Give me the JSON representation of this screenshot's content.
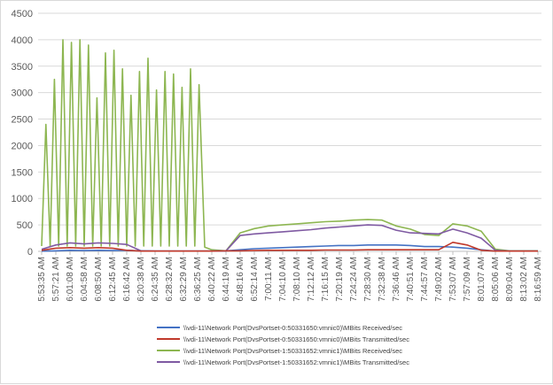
{
  "chart_data": {
    "type": "line",
    "title": "",
    "xlabel": "",
    "ylabel": "",
    "ylim": [
      0,
      4500
    ],
    "y_ticks": [
      0,
      500,
      1000,
      1500,
      2000,
      2500,
      3000,
      3500,
      4000,
      4500
    ],
    "grid": "horizontal",
    "legend_position": "bottom",
    "x_ticks": [
      "5:53:35 AM",
      "5:57:21 AM",
      "6:01:08 AM",
      "6:04:58 AM",
      "6:08:50 AM",
      "6:12:45 AM",
      "6:16:42 AM",
      "6:20:38 AM",
      "6:24:35 AM",
      "6:28:32 AM",
      "6:32:29 AM",
      "6:36:25 AM",
      "6:40:22 AM",
      "6:44:19 AM",
      "6:48:16 AM",
      "6:52:14 AM",
      "7:00:11 AM",
      "7:04:10 AM",
      "7:08:10 AM",
      "7:12:12 AM",
      "7:16:15 AM",
      "7:20:19 AM",
      "7:24:24 AM",
      "7:28:30 AM",
      "7:32:38 AM",
      "7:36:46 AM",
      "7:40:51 AM",
      "7:44:57 AM",
      "7:49:02 AM",
      "7:53:07 AM",
      "7:57:09 AM",
      "8:01:07 AM",
      "8:05:06 AM",
      "8:09:04 AM",
      "8:13:02 AM",
      "8:16:59 AM"
    ],
    "series": [
      {
        "name": "\\\\vdi-11\\Network Port(DvsPortset-0:50331650:vmnic0)\\MBits Received/sec",
        "color": "#4472c4",
        "points": [
          [
            0,
            5
          ],
          [
            1,
            10
          ],
          [
            2,
            20
          ],
          [
            3,
            15
          ],
          [
            4,
            20
          ],
          [
            5,
            15
          ],
          [
            6,
            20
          ],
          [
            7,
            10
          ],
          [
            8,
            5
          ],
          [
            9,
            5
          ],
          [
            10,
            5
          ],
          [
            11,
            5
          ],
          [
            12,
            5
          ],
          [
            13,
            10
          ],
          [
            14,
            30
          ],
          [
            15,
            50
          ],
          [
            16,
            60
          ],
          [
            17,
            70
          ],
          [
            18,
            80
          ],
          [
            19,
            90
          ],
          [
            20,
            100
          ],
          [
            21,
            110
          ],
          [
            22,
            110
          ],
          [
            23,
            120
          ],
          [
            24,
            120
          ],
          [
            25,
            120
          ],
          [
            26,
            110
          ],
          [
            27,
            90
          ],
          [
            28,
            90
          ],
          [
            29,
            80
          ],
          [
            30,
            60
          ],
          [
            31,
            30
          ],
          [
            32,
            5
          ],
          [
            33,
            5
          ],
          [
            34,
            5
          ],
          [
            35,
            5
          ]
        ]
      },
      {
        "name": "\\\\vdi-11\\Network Port(DvsPortset-0:50331650:vmnic0)\\MBits Transmitted/sec",
        "color": "#c0392b",
        "points": [
          [
            0,
            20
          ],
          [
            1,
            60
          ],
          [
            2,
            70
          ],
          [
            3,
            60
          ],
          [
            4,
            70
          ],
          [
            5,
            60
          ],
          [
            6,
            20
          ],
          [
            7,
            5
          ],
          [
            8,
            5
          ],
          [
            9,
            5
          ],
          [
            10,
            5
          ],
          [
            11,
            5
          ],
          [
            12,
            5
          ],
          [
            13,
            10
          ],
          [
            14,
            10
          ],
          [
            15,
            15
          ],
          [
            16,
            20
          ],
          [
            17,
            20
          ],
          [
            18,
            20
          ],
          [
            19,
            20
          ],
          [
            20,
            25
          ],
          [
            21,
            25
          ],
          [
            22,
            25
          ],
          [
            23,
            30
          ],
          [
            24,
            30
          ],
          [
            25,
            30
          ],
          [
            26,
            30
          ],
          [
            27,
            30
          ],
          [
            28,
            30
          ],
          [
            29,
            170
          ],
          [
            30,
            120
          ],
          [
            31,
            20
          ],
          [
            32,
            5
          ],
          [
            33,
            5
          ],
          [
            34,
            5
          ],
          [
            35,
            5
          ]
        ]
      },
      {
        "name": "\\\\vdi-11\\Network Port(DvsPortset-1:50331652:vmnic1)\\MBits Received/sec",
        "color": "#8db651",
        "points": [
          [
            0,
            100
          ],
          [
            0.3,
            2400
          ],
          [
            0.6,
            100
          ],
          [
            0.9,
            3250
          ],
          [
            1.2,
            100
          ],
          [
            1.5,
            4000
          ],
          [
            1.8,
            100
          ],
          [
            2.1,
            3950
          ],
          [
            2.4,
            100
          ],
          [
            2.7,
            4000
          ],
          [
            3.0,
            100
          ],
          [
            3.3,
            3900
          ],
          [
            3.6,
            100
          ],
          [
            3.9,
            2900
          ],
          [
            4.2,
            100
          ],
          [
            4.5,
            3750
          ],
          [
            4.8,
            100
          ],
          [
            5.1,
            3800
          ],
          [
            5.4,
            100
          ],
          [
            5.7,
            3450
          ],
          [
            6.0,
            100
          ],
          [
            6.3,
            2950
          ],
          [
            6.6,
            100
          ],
          [
            6.9,
            3400
          ],
          [
            7.2,
            100
          ],
          [
            7.5,
            3650
          ],
          [
            7.8,
            100
          ],
          [
            8.1,
            3050
          ],
          [
            8.4,
            100
          ],
          [
            8.7,
            3400
          ],
          [
            9.0,
            100
          ],
          [
            9.3,
            3350
          ],
          [
            9.6,
            100
          ],
          [
            9.9,
            3100
          ],
          [
            10.2,
            100
          ],
          [
            10.5,
            3450
          ],
          [
            10.8,
            100
          ],
          [
            11.1,
            3150
          ],
          [
            11.5,
            80
          ],
          [
            12,
            30
          ],
          [
            13,
            10
          ],
          [
            14,
            350
          ],
          [
            15,
            430
          ],
          [
            16,
            480
          ],
          [
            17,
            500
          ],
          [
            18,
            520
          ],
          [
            19,
            540
          ],
          [
            20,
            560
          ],
          [
            21,
            570
          ],
          [
            22,
            590
          ],
          [
            23,
            600
          ],
          [
            24,
            590
          ],
          [
            25,
            480
          ],
          [
            26,
            420
          ],
          [
            27,
            320
          ],
          [
            28,
            300
          ],
          [
            29,
            520
          ],
          [
            30,
            480
          ],
          [
            31,
            380
          ],
          [
            32,
            40
          ],
          [
            33,
            10
          ],
          [
            34,
            10
          ],
          [
            35,
            10
          ]
        ]
      },
      {
        "name": "\\\\vdi-11\\Network Port(DvsPortset-1:50331652:vmnic1)\\MBits Transmitted/sec",
        "color": "#7f5aa2",
        "points": [
          [
            0,
            40
          ],
          [
            1,
            120
          ],
          [
            2,
            160
          ],
          [
            3,
            140
          ],
          [
            4,
            160
          ],
          [
            5,
            150
          ],
          [
            6,
            130
          ],
          [
            7,
            10
          ],
          [
            8,
            5
          ],
          [
            9,
            5
          ],
          [
            10,
            5
          ],
          [
            11,
            5
          ],
          [
            12,
            5
          ],
          [
            13,
            10
          ],
          [
            14,
            300
          ],
          [
            15,
            330
          ],
          [
            16,
            350
          ],
          [
            17,
            370
          ],
          [
            18,
            390
          ],
          [
            19,
            410
          ],
          [
            20,
            440
          ],
          [
            21,
            460
          ],
          [
            22,
            480
          ],
          [
            23,
            500
          ],
          [
            24,
            490
          ],
          [
            25,
            400
          ],
          [
            26,
            350
          ],
          [
            27,
            340
          ],
          [
            28,
            330
          ],
          [
            29,
            420
          ],
          [
            30,
            350
          ],
          [
            31,
            250
          ],
          [
            32,
            20
          ],
          [
            33,
            5
          ],
          [
            34,
            5
          ],
          [
            35,
            5
          ]
        ]
      }
    ]
  }
}
